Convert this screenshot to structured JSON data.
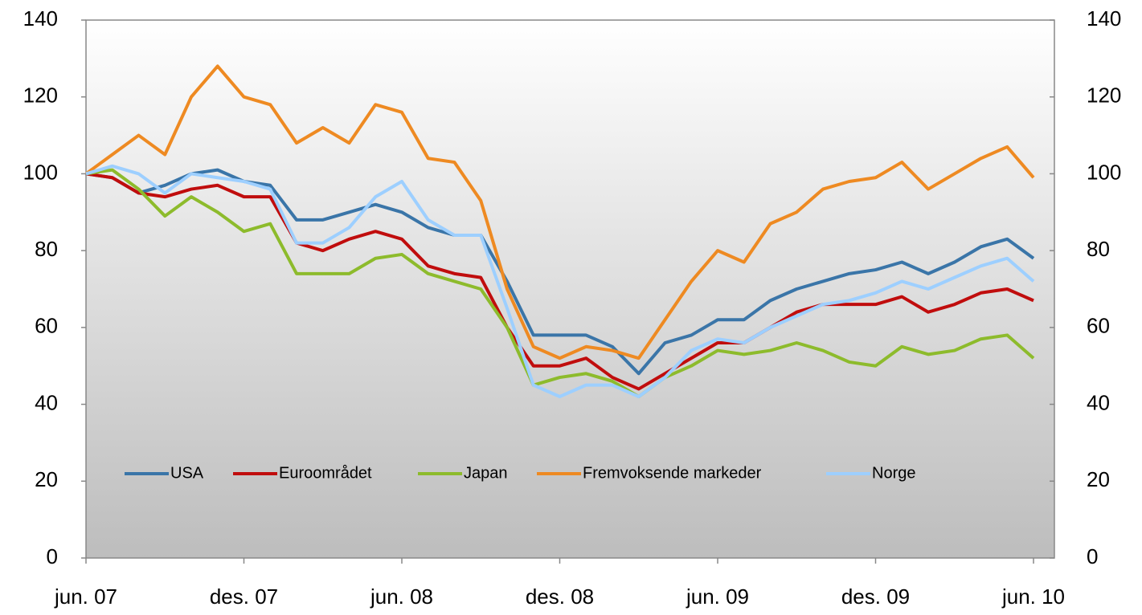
{
  "chart_data": {
    "type": "line",
    "categories": [
      "jun. 07",
      null,
      null,
      null,
      null,
      null,
      "des. 07",
      null,
      null,
      null,
      null,
      null,
      "jun. 08",
      null,
      null,
      null,
      null,
      null,
      "des. 08",
      null,
      null,
      null,
      null,
      null,
      "jun. 09",
      null,
      null,
      null,
      null,
      null,
      "des. 09",
      null,
      null,
      null,
      null,
      null,
      "jun. 10"
    ],
    "series": [
      {
        "name": "USA",
        "color": "#3a75a8",
        "values": [
          100,
          99,
          95,
          97,
          100,
          101,
          98,
          97,
          88,
          88,
          90,
          92,
          90,
          86,
          84,
          84,
          72,
          58,
          58,
          58,
          55,
          48,
          56,
          58,
          62,
          62,
          67,
          70,
          72,
          74,
          75,
          77,
          74,
          77,
          81,
          83,
          78
        ]
      },
      {
        "name": "Euroområdet",
        "color": "#c00d0d",
        "values": [
          100,
          99,
          95,
          94,
          96,
          97,
          94,
          94,
          82,
          80,
          83,
          85,
          83,
          76,
          74,
          73,
          60,
          50,
          50,
          52,
          47,
          44,
          48,
          52,
          56,
          56,
          60,
          64,
          66,
          66,
          66,
          68,
          64,
          66,
          69,
          70,
          67
        ]
      },
      {
        "name": "Japan",
        "color": "#8dbb2c",
        "values": [
          100,
          101,
          96,
          89,
          94,
          90,
          85,
          87,
          74,
          74,
          74,
          78,
          79,
          74,
          72,
          70,
          60,
          45,
          47,
          48,
          46,
          42,
          47,
          50,
          54,
          53,
          54,
          56,
          54,
          51,
          50,
          55,
          53,
          54,
          57,
          58,
          52
        ]
      },
      {
        "name": "Fremvoksende markeder",
        "color": "#ee8a22",
        "values": [
          100,
          105,
          110,
          105,
          120,
          128,
          120,
          118,
          108,
          112,
          108,
          118,
          116,
          104,
          103,
          93,
          70,
          55,
          52,
          55,
          54,
          52,
          62,
          72,
          80,
          77,
          87,
          90,
          96,
          98,
          99,
          103,
          96,
          100,
          104,
          107,
          99
        ]
      },
      {
        "name": "Norge",
        "color": "#9dcfff",
        "values": [
          100,
          102,
          100,
          95,
          100,
          99,
          98,
          96,
          82,
          82,
          86,
          94,
          98,
          88,
          84,
          84,
          65,
          45,
          42,
          45,
          45,
          42,
          47,
          54,
          57,
          56,
          60,
          63,
          66,
          67,
          69,
          72,
          70,
          73,
          76,
          78,
          72
        ]
      }
    ],
    "ylim": [
      0,
      140
    ],
    "yticks": [
      0,
      20,
      40,
      60,
      80,
      100,
      120,
      140
    ],
    "y2lim": [
      0,
      140
    ],
    "y2ticks": [
      0,
      20,
      40,
      60,
      80,
      100,
      120,
      140
    ],
    "legend": "bottom-left"
  }
}
